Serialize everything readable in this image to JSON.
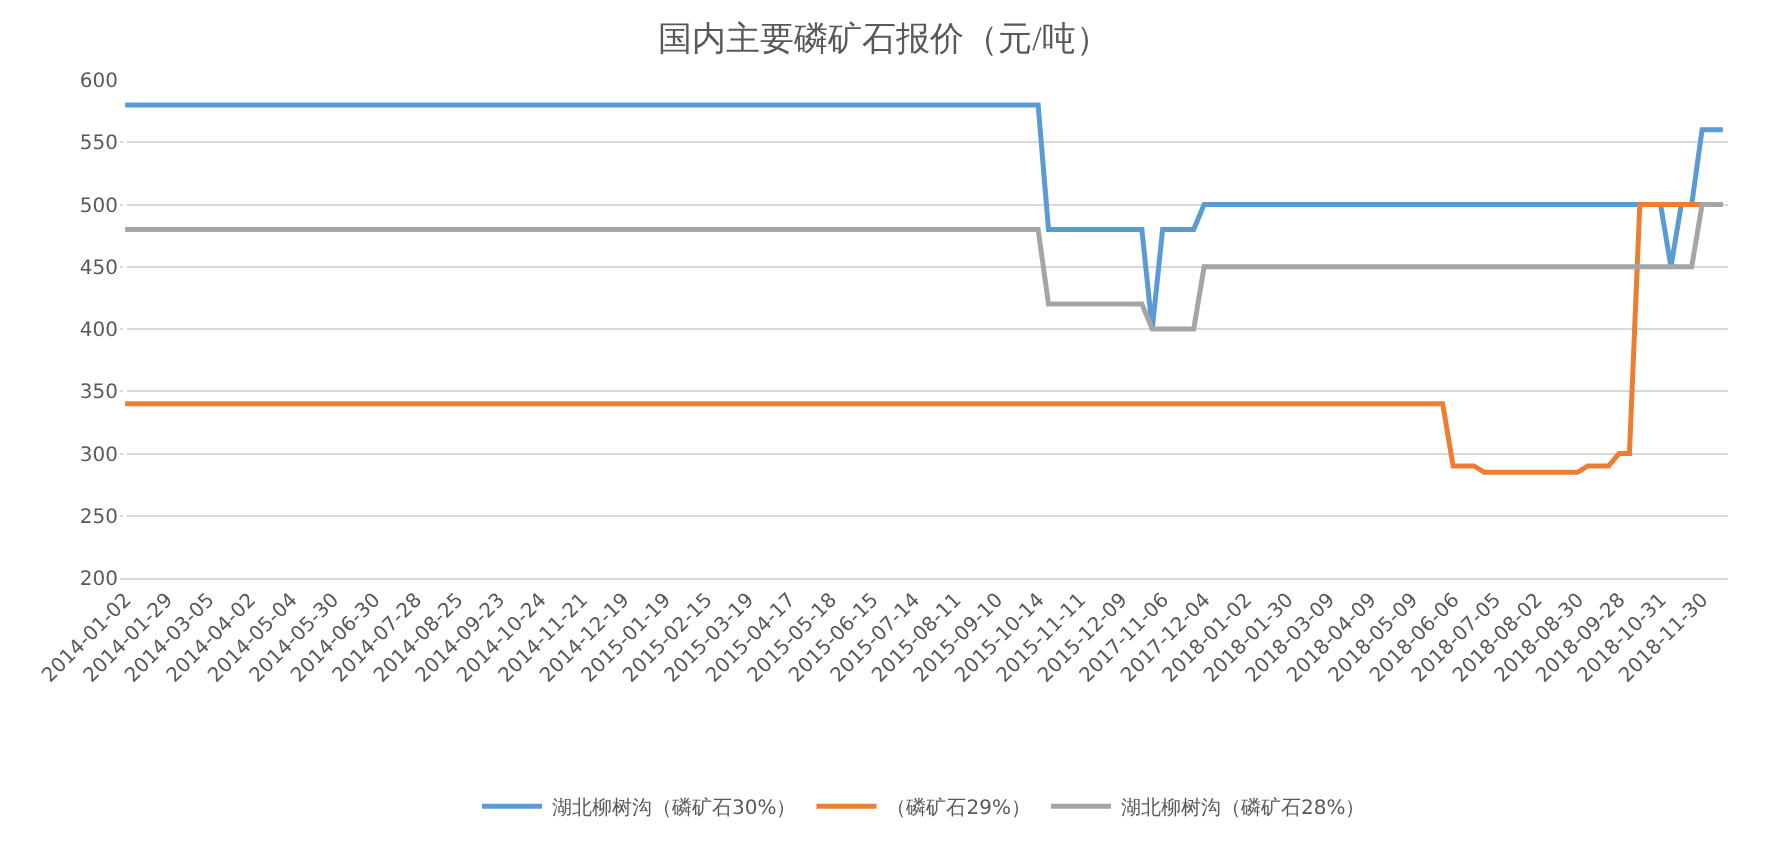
{
  "chart_data": {
    "type": "line",
    "title": "国内主要磷矿石报价（元/吨）",
    "categories": [
      "2014-01-02",
      null,
      null,
      null,
      "2014-01-29",
      null,
      null,
      null,
      "2014-03-05",
      null,
      null,
      null,
      "2014-04-02",
      null,
      null,
      null,
      "2014-05-04",
      null,
      null,
      null,
      "2014-05-30",
      null,
      null,
      null,
      "2014-06-30",
      null,
      null,
      null,
      "2014-07-28",
      null,
      null,
      null,
      "2014-08-25",
      null,
      null,
      null,
      "2014-09-23",
      null,
      null,
      null,
      "2014-10-24",
      null,
      null,
      null,
      "2014-11-21",
      null,
      null,
      null,
      "2014-12-19",
      null,
      null,
      null,
      "2015-01-19",
      null,
      null,
      null,
      "2015-02-15",
      null,
      null,
      null,
      "2015-03-19",
      null,
      null,
      null,
      "2015-04-17",
      null,
      null,
      null,
      "2015-05-18",
      null,
      null,
      null,
      "2015-06-15",
      null,
      null,
      null,
      "2015-07-14",
      null,
      null,
      null,
      "2015-08-11",
      null,
      null,
      null,
      "2015-09-10",
      null,
      null,
      null,
      "2015-10-14",
      null,
      null,
      null,
      "2015-11-11",
      null,
      null,
      null,
      "2015-12-09",
      null,
      null,
      null,
      "2017-11-06",
      null,
      null,
      null,
      "2017-12-04",
      null,
      null,
      null,
      "2018-01-02",
      null,
      null,
      null,
      "2018-01-30",
      null,
      null,
      null,
      "2018-03-09",
      null,
      null,
      null,
      "2018-04-09",
      null,
      null,
      null,
      "2018-05-09",
      null,
      null,
      null,
      "2018-06-06",
      null,
      null,
      null,
      "2018-07-05",
      null,
      null,
      null,
      "2018-08-02",
      null,
      null,
      null,
      "2018-08-30",
      null,
      null,
      null,
      "2018-09-28",
      null,
      null,
      null,
      "2018-10-31",
      null,
      null,
      null,
      "2018-11-30",
      null,
      null
    ],
    "series": [
      {
        "name": "湖北柳树沟（磷矿石30%）",
        "color": "#5b9bd5",
        "values": [
          580,
          580,
          580,
          580,
          580,
          580,
          580,
          580,
          580,
          580,
          580,
          580,
          580,
          580,
          580,
          580,
          580,
          580,
          580,
          580,
          580,
          580,
          580,
          580,
          580,
          580,
          580,
          580,
          580,
          580,
          580,
          580,
          580,
          580,
          580,
          580,
          580,
          580,
          580,
          580,
          580,
          580,
          580,
          580,
          580,
          580,
          580,
          580,
          580,
          580,
          580,
          580,
          580,
          580,
          580,
          580,
          580,
          580,
          580,
          580,
          580,
          580,
          580,
          580,
          580,
          580,
          580,
          580,
          580,
          580,
          580,
          580,
          580,
          580,
          580,
          580,
          580,
          580,
          580,
          580,
          580,
          580,
          580,
          580,
          580,
          580,
          580,
          580,
          580,
          480,
          480,
          480,
          480,
          480,
          480,
          480,
          480,
          480,
          480,
          400,
          480,
          480,
          480,
          480,
          500,
          500,
          500,
          500,
          500,
          500,
          500,
          500,
          500,
          500,
          500,
          500,
          500,
          500,
          500,
          500,
          500,
          500,
          500,
          500,
          500,
          500,
          500,
          500,
          500,
          500,
          500,
          500,
          500,
          500,
          500,
          500,
          500,
          500,
          500,
          500,
          500,
          500,
          500,
          500,
          500,
          500,
          500,
          500,
          500,
          450,
          500,
          500,
          560,
          560,
          560
        ]
      },
      {
        "name": "（磷矿石29%）",
        "color": "#ed7d31",
        "values": [
          340,
          340,
          340,
          340,
          340,
          340,
          340,
          340,
          340,
          340,
          340,
          340,
          340,
          340,
          340,
          340,
          340,
          340,
          340,
          340,
          340,
          340,
          340,
          340,
          340,
          340,
          340,
          340,
          340,
          340,
          340,
          340,
          340,
          340,
          340,
          340,
          340,
          340,
          340,
          340,
          340,
          340,
          340,
          340,
          340,
          340,
          340,
          340,
          340,
          340,
          340,
          340,
          340,
          340,
          340,
          340,
          340,
          340,
          340,
          340,
          340,
          340,
          340,
          340,
          340,
          340,
          340,
          340,
          340,
          340,
          340,
          340,
          340,
          340,
          340,
          340,
          340,
          340,
          340,
          340,
          340,
          340,
          340,
          340,
          340,
          340,
          340,
          340,
          340,
          340,
          340,
          340,
          340,
          340,
          340,
          340,
          340,
          340,
          340,
          340,
          340,
          340,
          340,
          340,
          340,
          340,
          340,
          340,
          340,
          340,
          340,
          340,
          340,
          340,
          340,
          340,
          340,
          340,
          340,
          340,
          340,
          340,
          340,
          340,
          340,
          340,
          340,
          340,
          290,
          290,
          290,
          285,
          285,
          285,
          285,
          285,
          285,
          285,
          285,
          285,
          285,
          290,
          290,
          290,
          300,
          300,
          500,
          500,
          500,
          500,
          500,
          500,
          500,
          500,
          500
        ]
      },
      {
        "name": "湖北柳树沟（磷矿石28%）",
        "color": "#a5a5a5",
        "values": [
          480,
          480,
          480,
          480,
          480,
          480,
          480,
          480,
          480,
          480,
          480,
          480,
          480,
          480,
          480,
          480,
          480,
          480,
          480,
          480,
          480,
          480,
          480,
          480,
          480,
          480,
          480,
          480,
          480,
          480,
          480,
          480,
          480,
          480,
          480,
          480,
          480,
          480,
          480,
          480,
          480,
          480,
          480,
          480,
          480,
          480,
          480,
          480,
          480,
          480,
          480,
          480,
          480,
          480,
          480,
          480,
          480,
          480,
          480,
          480,
          480,
          480,
          480,
          480,
          480,
          480,
          480,
          480,
          480,
          480,
          480,
          480,
          480,
          480,
          480,
          480,
          480,
          480,
          480,
          480,
          480,
          480,
          480,
          480,
          480,
          480,
          480,
          480,
          480,
          420,
          420,
          420,
          420,
          420,
          420,
          420,
          420,
          420,
          420,
          400,
          400,
          400,
          400,
          400,
          450,
          450,
          450,
          450,
          450,
          450,
          450,
          450,
          450,
          450,
          450,
          450,
          450,
          450,
          450,
          450,
          450,
          450,
          450,
          450,
          450,
          450,
          450,
          450,
          450,
          450,
          450,
          450,
          450,
          450,
          450,
          450,
          450,
          450,
          450,
          450,
          450,
          450,
          450,
          450,
          450,
          450,
          450,
          450,
          450,
          450,
          450,
          450,
          500,
          500,
          500
        ]
      }
    ],
    "ylim": [
      200,
      600
    ],
    "yticks": [
      200,
      250,
      300,
      350,
      400,
      450,
      500,
      550,
      600
    ],
    "grid": "y",
    "legend": "bottom",
    "marker": "none",
    "line_style": "solid"
  }
}
